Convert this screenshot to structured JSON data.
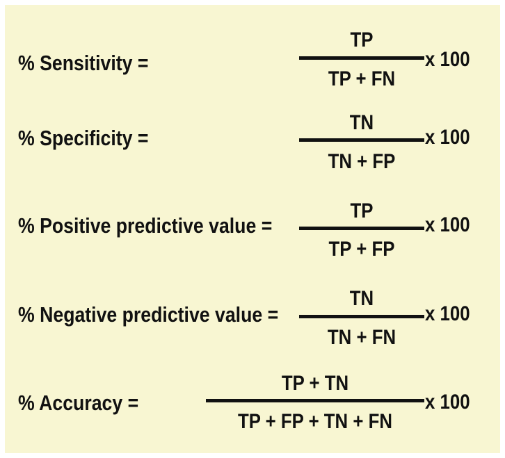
{
  "formulas": [
    {
      "label": "% Sensitivity =",
      "numerator": "TP",
      "denominator": "TP + FN",
      "multiplier": "x 100"
    },
    {
      "label": "% Specificity =",
      "numerator": "TN",
      "denominator": "TN + FP",
      "multiplier": "x 100"
    },
    {
      "label": "% Positive predictive value =",
      "numerator": "TP",
      "denominator": "TP + FP",
      "multiplier": "x 100"
    },
    {
      "label": "% Negative predictive value =",
      "numerator": "TN",
      "denominator": "TN + FN",
      "multiplier": "x 100"
    },
    {
      "label": "% Accuracy =",
      "numerator": "TP + TN",
      "denominator": "TP + FP + TN + FN",
      "multiplier": "x 100"
    }
  ],
  "colors": {
    "background": "#f8f6d2",
    "text": "#111111"
  }
}
